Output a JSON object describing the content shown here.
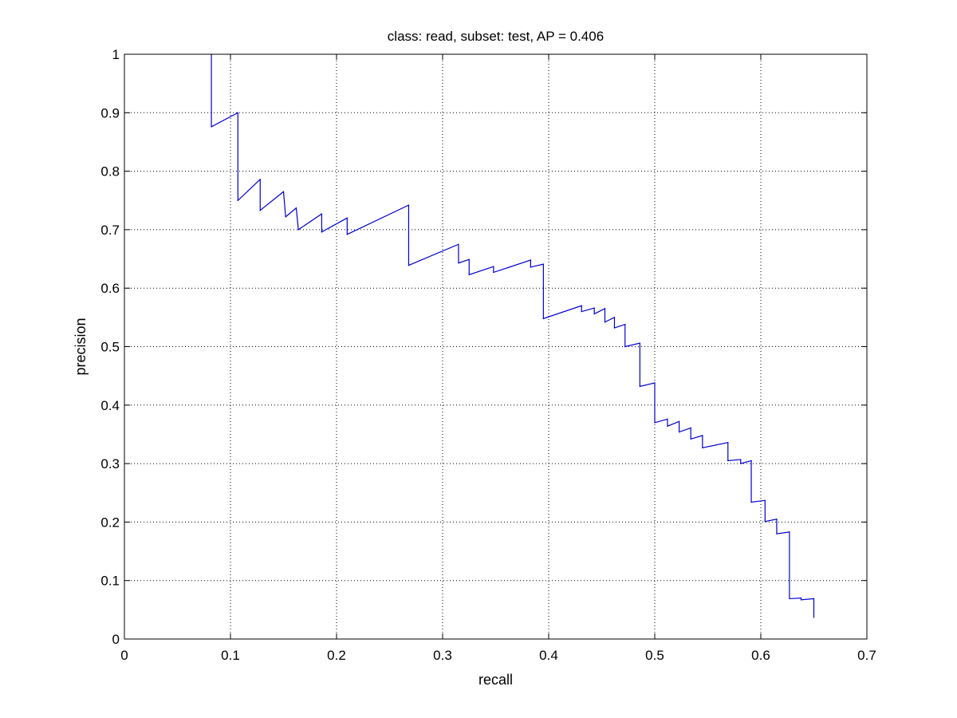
{
  "chart_data": {
    "type": "line",
    "title": "class: read, subset: test, AP = 0.406",
    "xlabel": "recall",
    "ylabel": "precision",
    "xlim": [
      0,
      0.7
    ],
    "ylim": [
      0,
      1
    ],
    "grid": true,
    "grid_style": "dotted",
    "xticks": [
      0,
      0.1,
      0.2,
      0.3,
      0.4,
      0.5,
      0.6,
      0.7
    ],
    "xtick_labels": [
      "0",
      "0.1",
      "0.2",
      "0.3",
      "0.4",
      "0.5",
      "0.6",
      "0.7"
    ],
    "yticks": [
      0,
      0.1,
      0.2,
      0.3,
      0.4,
      0.5,
      0.6,
      0.7,
      0.8,
      0.9,
      1
    ],
    "ytick_labels": [
      "0",
      "0.1",
      "0.2",
      "0.3",
      "0.4",
      "0.5",
      "0.6",
      "0.7",
      "0.8",
      "0.9",
      "1"
    ],
    "series": [
      {
        "color": "#0000cc",
        "x": [
          0.082,
          0.082,
          0.107,
          0.107,
          0.128,
          0.128,
          0.15,
          0.152,
          0.162,
          0.164,
          0.186,
          0.186,
          0.21,
          0.21,
          0.268,
          0.268,
          0.315,
          0.315,
          0.325,
          0.325,
          0.348,
          0.348,
          0.383,
          0.383,
          0.395,
          0.395,
          0.431,
          0.431,
          0.443,
          0.443,
          0.453,
          0.453,
          0.462,
          0.462,
          0.472,
          0.472,
          0.486,
          0.486,
          0.5,
          0.5,
          0.512,
          0.512,
          0.523,
          0.523,
          0.534,
          0.534,
          0.545,
          0.545,
          0.569,
          0.569,
          0.581,
          0.581,
          0.591,
          0.591,
          0.604,
          0.604,
          0.615,
          0.615,
          0.627,
          0.627,
          0.638,
          0.638,
          0.65,
          0.65
        ],
        "y": [
          1.0,
          0.876,
          0.9,
          0.75,
          0.786,
          0.733,
          0.765,
          0.722,
          0.737,
          0.7,
          0.727,
          0.696,
          0.72,
          0.692,
          0.742,
          0.639,
          0.675,
          0.643,
          0.649,
          0.623,
          0.637,
          0.627,
          0.648,
          0.636,
          0.641,
          0.548,
          0.57,
          0.56,
          0.566,
          0.556,
          0.565,
          0.542,
          0.55,
          0.532,
          0.538,
          0.5,
          0.506,
          0.432,
          0.438,
          0.37,
          0.376,
          0.364,
          0.372,
          0.354,
          0.361,
          0.342,
          0.348,
          0.327,
          0.336,
          0.305,
          0.307,
          0.3,
          0.305,
          0.234,
          0.237,
          0.201,
          0.205,
          0.18,
          0.183,
          0.069,
          0.07,
          0.067,
          0.069,
          0.037
        ]
      }
    ]
  }
}
